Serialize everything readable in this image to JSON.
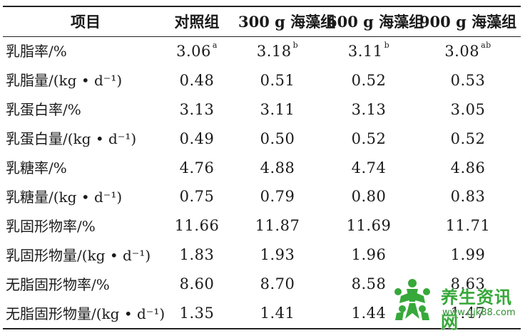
{
  "table": {
    "headers": [
      "项目",
      "对照组",
      "300 g 海藻组",
      "600 g 海藻组",
      "900 g 海藻组"
    ],
    "rows": [
      {
        "label": "乳脂率/%",
        "values": [
          "3.06",
          "3.18",
          "3.11",
          "3.08"
        ],
        "sups": [
          "a",
          "b",
          "b",
          "ab"
        ]
      },
      {
        "label": "乳脂量/(kg • d⁻¹)",
        "values": [
          "0.48",
          "0.51",
          "0.52",
          "0.53"
        ],
        "sups": [
          "",
          "",
          "",
          ""
        ]
      },
      {
        "label": "乳蛋白率/%",
        "values": [
          "3.13",
          "3.11",
          "3.13",
          "3.05"
        ],
        "sups": [
          "",
          "",
          "",
          ""
        ]
      },
      {
        "label": "乳蛋白量/(kg • d⁻¹)",
        "values": [
          "0.49",
          "0.50",
          "0.52",
          "0.52"
        ],
        "sups": [
          "",
          "",
          "",
          ""
        ]
      },
      {
        "label": "乳糖率/%",
        "values": [
          "4.76",
          "4.88",
          "4.74",
          "4.86"
        ],
        "sups": [
          "",
          "",
          "",
          ""
        ]
      },
      {
        "label": "乳糖量/(kg • d⁻¹)",
        "values": [
          "0.75",
          "0.79",
          "0.80",
          "0.83"
        ],
        "sups": [
          "",
          "",
          "",
          ""
        ]
      },
      {
        "label": "乳固形物率/%",
        "values": [
          "11.66",
          "11.87",
          "11.69",
          "11.71"
        ],
        "sups": [
          "",
          "",
          "",
          ""
        ]
      },
      {
        "label": "乳固形物量/(kg • d⁻¹)",
        "values": [
          "1.83",
          "1.93",
          "1.96",
          "1.99"
        ],
        "sups": [
          "",
          "",
          "",
          ""
        ]
      },
      {
        "label": "无脂固形物率/%",
        "values": [
          "8.60",
          "8.70",
          "8.58",
          "8.63"
        ],
        "sups": [
          "",
          "",
          "",
          ""
        ]
      },
      {
        "label": "无脂固形物量/(kg • d⁻¹)",
        "values": [
          "1.35",
          "1.41",
          "1.44",
          "1.47"
        ],
        "sups": [
          "",
          "",
          "",
          ""
        ]
      }
    ]
  },
  "watermark": {
    "title": "养生资讯网",
    "url": "www.gjk88.com",
    "color": "#37a83a"
  }
}
